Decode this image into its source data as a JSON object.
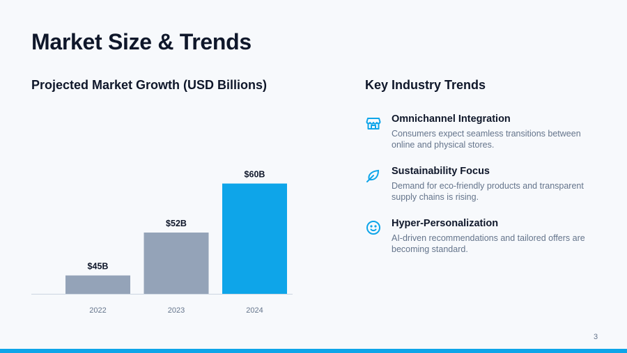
{
  "title": "Market Size & Trends",
  "chart_heading": "Projected Market Growth (USD Billions)",
  "trends_heading": "Key Industry Trends",
  "chart_data": {
    "type": "bar",
    "title": "Projected Market Growth (USD Billions)",
    "categories": [
      "2022",
      "2023",
      "2024"
    ],
    "values": [
      45,
      52,
      60
    ],
    "data_labels": [
      "$45B",
      "$52B",
      "$60B"
    ],
    "colors": [
      "#94a3b8",
      "#94a3b8",
      "#0ea5e9"
    ],
    "ylim": [
      42,
      62
    ],
    "grid": false,
    "legend": "none"
  },
  "trends": [
    {
      "icon": "store-icon",
      "title": "Omnichannel Integration",
      "desc": "Consumers expect seamless transitions between online and physical stores."
    },
    {
      "icon": "leaf-icon",
      "title": "Sustainability Focus",
      "desc": "Demand for eco-friendly products and transparent supply chains is rising."
    },
    {
      "icon": "smile-icon",
      "title": "Hyper-Personalization",
      "desc": "AI-driven recommendations and tailored offers are becoming standard."
    }
  ],
  "page_number": "3",
  "accent_color": "#0ea5e9"
}
